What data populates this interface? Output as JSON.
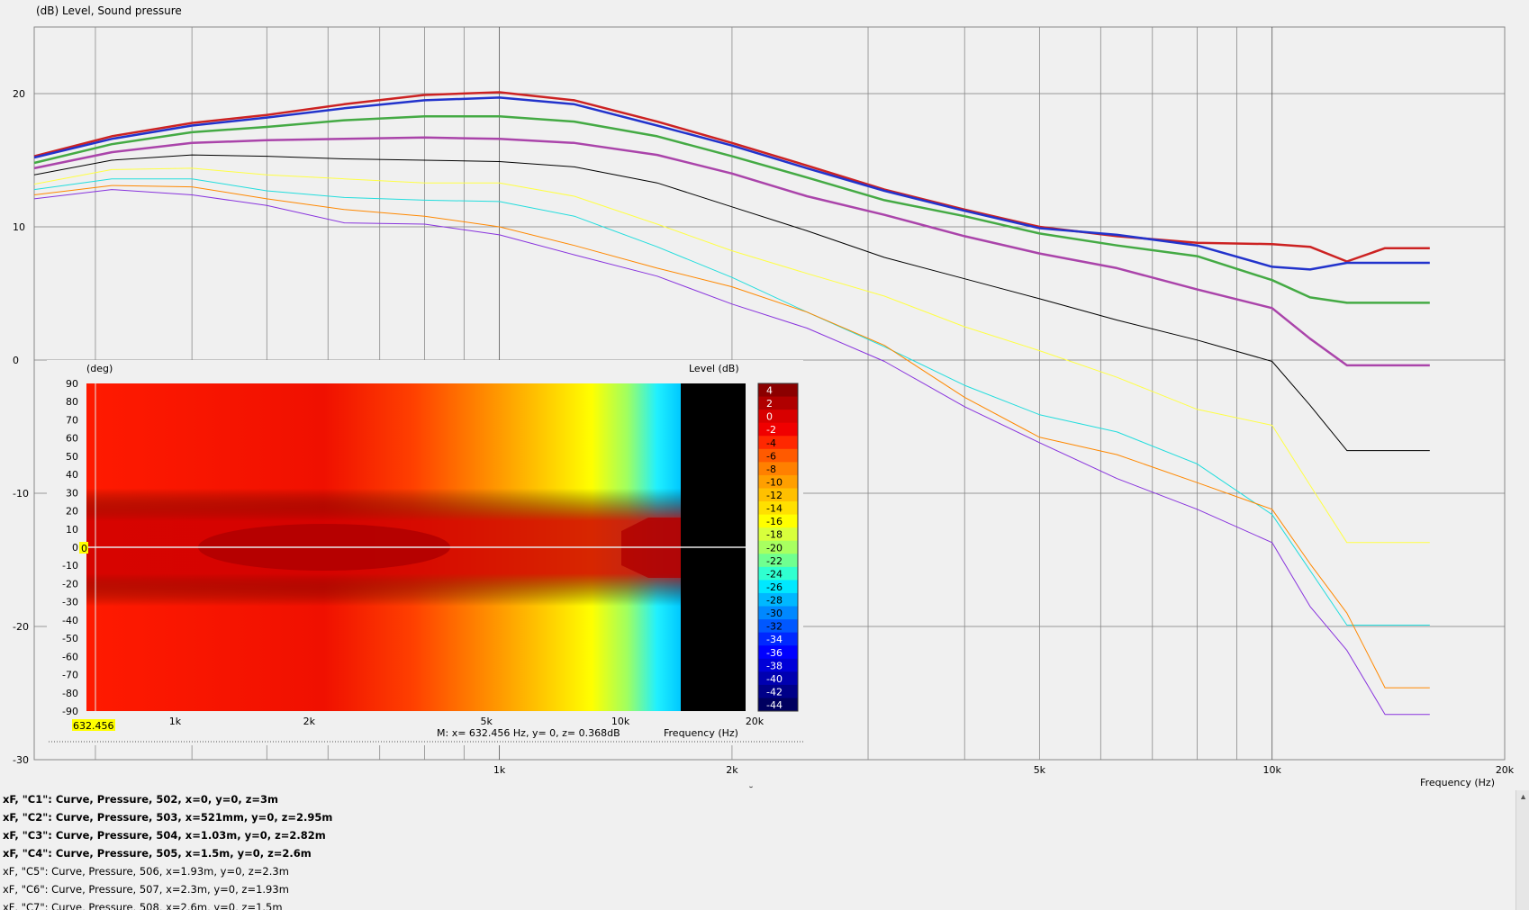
{
  "main_chart": {
    "y_axis_title": "(dB)  Level, Sound pressure",
    "x_axis_title": "Frequency  (Hz)",
    "y_ticks": [
      "20",
      "10",
      "0",
      "-10",
      "-20",
      "-30"
    ],
    "x_ticks": [
      "1k",
      "2k",
      "5k",
      "10k",
      "20k"
    ]
  },
  "inset": {
    "left_axis_title": "(deg)",
    "right_axis_title": "Level  (dB)",
    "deg_ticks": [
      "90",
      "80",
      "70",
      "60",
      "50",
      "40",
      "30",
      "20",
      "10",
      "0",
      "-10",
      "-20",
      "-30",
      "-40",
      "-50",
      "-60",
      "-70",
      "-80",
      "-90"
    ],
    "x_ticks": [
      "1k",
      "2k",
      "5k",
      "10k",
      "20k"
    ],
    "x_axis_title": "Frequency  (Hz)",
    "marker_x_label": "632.456",
    "marker_y_label": "0",
    "readout": "M:  x= 632.456 Hz,  y= 0,  z= 0.368dB",
    "scale": [
      "4",
      "2",
      "0",
      "-2",
      "-4",
      "-6",
      "-8",
      "-10",
      "-12",
      "-14",
      "-16",
      "-18",
      "-20",
      "-22",
      "-24",
      "-26",
      "-28",
      "-30",
      "-32",
      "-34",
      "-36",
      "-38",
      "-40",
      "-42",
      "-44"
    ],
    "scale_colors": [
      "#8b0000",
      "#b00000",
      "#d80000",
      "#f00000",
      "#ff2800",
      "#ff5a00",
      "#ff8000",
      "#ff9f00",
      "#ffc000",
      "#ffe000",
      "#ffff00",
      "#d8ff3c",
      "#a8ff60",
      "#70ff90",
      "#30ffd0",
      "#00e8ff",
      "#00b8ff",
      "#0088ff",
      "#0058ff",
      "#0028ff",
      "#0000ff",
      "#0000d8",
      "#0000b0",
      "#000088",
      "#000060"
    ]
  },
  "legend": [
    {
      "text": "xF, \"C1\": Curve, Pressure, 502, x=0, y=0, z=3m",
      "bold": true
    },
    {
      "text": "xF, \"C2\": Curve, Pressure, 503, x=521mm, y=0, z=2.95m",
      "bold": true
    },
    {
      "text": "xF, \"C3\": Curve, Pressure, 504, x=1.03m, y=0, z=2.82m",
      "bold": true
    },
    {
      "text": "xF, \"C4\": Curve, Pressure, 505, x=1.5m, y=0, z=2.6m",
      "bold": true
    },
    {
      "text": "xF, \"C5\": Curve, Pressure, 506, x=1.93m, y=0, z=2.3m",
      "bold": false
    },
    {
      "text": "xF, \"C6\": Curve, Pressure, 507, x=2.3m, y=0, z=1.93m",
      "bold": false
    },
    {
      "text": "xF, \"C7\": Curve, Pressure, 508, x=2.6m, y=0, z=1.5m",
      "bold": false
    }
  ],
  "chart_data": {
    "type": "line",
    "x_scale": "log",
    "xlim": [
      250,
      20000
    ],
    "ylim": [
      -30,
      25
    ],
    "ylabel": "(dB)  Level, Sound pressure",
    "xlabel": "Frequency  (Hz)",
    "grid": true,
    "x": [
      250,
      315,
      400,
      500,
      630,
      800,
      1000,
      1250,
      1600,
      2000,
      2500,
      3150,
      4000,
      5000,
      6300,
      8000,
      10000,
      11200,
      12500,
      14000,
      16000
    ],
    "series": [
      {
        "color": "#cc2222",
        "width": 2.5,
        "values": [
          15.3,
          16.8,
          17.8,
          18.4,
          19.2,
          19.9,
          20.1,
          19.5,
          17.9,
          16.3,
          14.6,
          12.8,
          11.3,
          10.0,
          9.3,
          8.8,
          8.7,
          8.5,
          7.4,
          8.4,
          8.4
        ]
      },
      {
        "color": "#2233cc",
        "width": 2.5,
        "values": [
          15.2,
          16.6,
          17.6,
          18.2,
          18.9,
          19.5,
          19.7,
          19.2,
          17.6,
          16.1,
          14.4,
          12.7,
          11.2,
          9.9,
          9.4,
          8.6,
          7.0,
          6.8,
          7.3,
          7.3,
          7.3
        ]
      },
      {
        "color": "#44aa44",
        "width": 2.5,
        "values": [
          14.8,
          16.2,
          17.1,
          17.5,
          18.0,
          18.3,
          18.3,
          17.9,
          16.8,
          15.3,
          13.7,
          12.0,
          10.8,
          9.5,
          8.6,
          7.8,
          6.0,
          4.7,
          4.3,
          4.3,
          4.3
        ]
      },
      {
        "color": "#aa44aa",
        "width": 2.5,
        "values": [
          14.4,
          15.6,
          16.3,
          16.5,
          16.6,
          16.7,
          16.6,
          16.3,
          15.4,
          14.0,
          12.3,
          10.9,
          9.3,
          8.0,
          6.9,
          5.3,
          3.9,
          1.6,
          -0.4,
          -0.4,
          -0.4
        ]
      },
      {
        "color": "#000000",
        "width": 1,
        "values": [
          13.9,
          15.0,
          15.4,
          15.3,
          15.1,
          15.0,
          14.9,
          14.5,
          13.3,
          11.5,
          9.7,
          7.7,
          6.1,
          4.6,
          3.0,
          1.5,
          -0.1,
          -3.4,
          -6.8,
          -6.8,
          -6.8
        ]
      },
      {
        "color": "#ffff44",
        "width": 1,
        "values": [
          13.2,
          14.3,
          14.4,
          13.9,
          13.6,
          13.3,
          13.3,
          12.3,
          10.2,
          8.2,
          6.5,
          4.8,
          2.5,
          0.7,
          -1.3,
          -3.7,
          -4.9,
          -9.4,
          -13.7,
          -13.7,
          -13.7
        ]
      },
      {
        "color": "#22dddd",
        "width": 1,
        "values": [
          12.8,
          13.6,
          13.6,
          12.7,
          12.2,
          12.0,
          11.9,
          10.8,
          8.5,
          6.2,
          3.6,
          1.0,
          -1.9,
          -4.1,
          -5.4,
          -7.8,
          -11.6,
          -15.8,
          -19.9,
          -19.9,
          -19.9
        ]
      },
      {
        "color": "#ff8800",
        "width": 1,
        "values": [
          12.4,
          13.1,
          13.0,
          12.1,
          11.3,
          10.8,
          10.0,
          8.6,
          6.9,
          5.5,
          3.6,
          1.1,
          -2.8,
          -5.8,
          -7.1,
          -9.2,
          -11.2,
          -15.3,
          -19.0,
          -24.6,
          -24.6
        ]
      },
      {
        "color": "#8833dd",
        "width": 1,
        "values": [
          12.1,
          12.8,
          12.4,
          11.6,
          10.3,
          10.2,
          9.4,
          7.9,
          6.3,
          4.2,
          2.4,
          -0.1,
          -3.5,
          -6.2,
          -8.9,
          -11.2,
          -13.7,
          -18.5,
          -21.8,
          -26.6,
          -26.6
        ]
      }
    ]
  }
}
